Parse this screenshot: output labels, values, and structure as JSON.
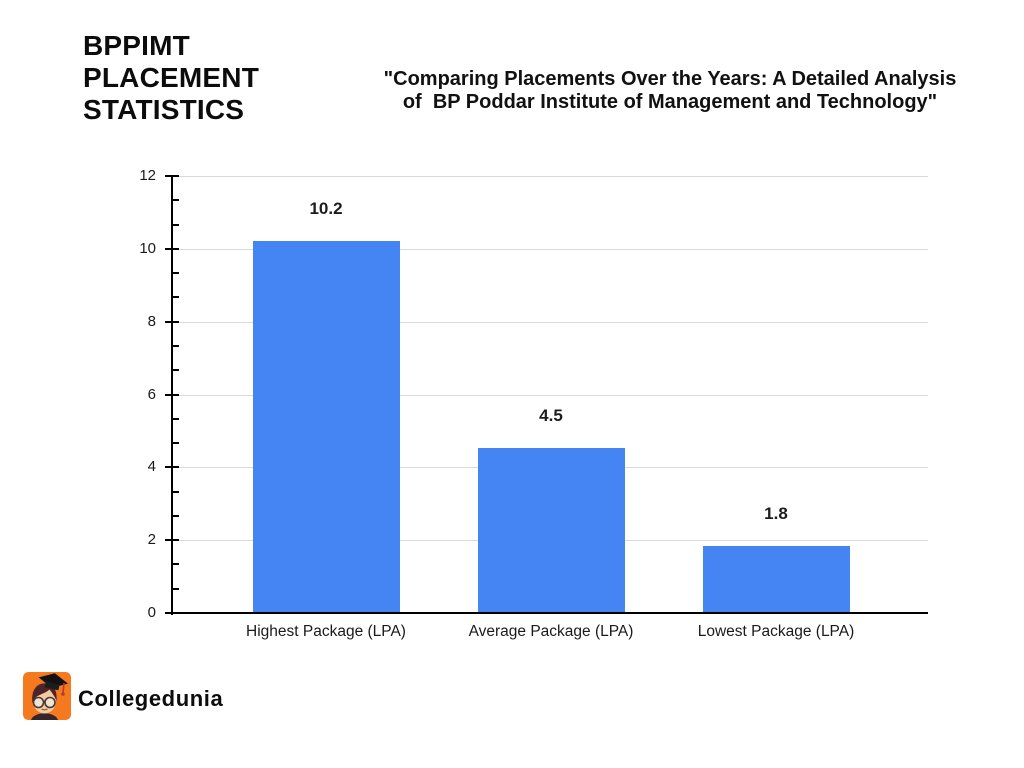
{
  "header": {
    "title_lines": [
      "BPPIMT",
      "PLACEMENT",
      "STATISTICS"
    ]
  },
  "subtitle": {
    "lines": [
      "\"Comparing Placements Over the Years: A Detailed Analysis",
      "of  BP Poddar Institute of Management and Technology\""
    ]
  },
  "chart_data": {
    "type": "bar",
    "title": "",
    "xlabel": "",
    "ylabel": "",
    "categories": [
      "Highest Package (LPA)",
      "Average Package (LPA)",
      "Lowest Package (LPA)"
    ],
    "values": [
      10.2,
      4.5,
      1.8
    ],
    "value_labels": [
      "10.2",
      "4.5",
      "1.8"
    ],
    "ylim": [
      0,
      12
    ],
    "y_tick_step": 2,
    "y_tick_labels": [
      "0",
      "2",
      "4",
      "6",
      "8",
      "10",
      "12"
    ],
    "y_minor_ticks_per_interval": 2,
    "grid": true,
    "legend": "none",
    "bar_color": "#4484F3",
    "gridline_color": "#D9D9D9",
    "axis_color": "#000000",
    "tick_label_color": "#1A1A1A",
    "value_label_color": "#1C1C1C"
  },
  "footer": {
    "brand": "Collegedunia",
    "logo_icon": "graduate-boy-icon",
    "logo_color": "#F57A1F"
  }
}
